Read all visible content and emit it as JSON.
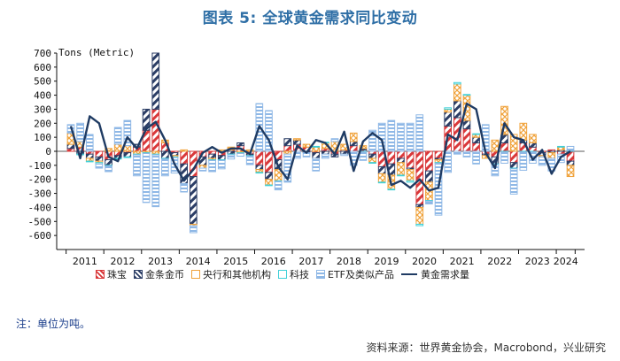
{
  "title": "图表  5: 全球黄金需求同比变动",
  "note": "注：单位为吨。",
  "source": "资料来源：世界黄金协会，Macrobond，兴业研究",
  "chart_data": {
    "type": "bar",
    "unit_label": "Tons (Metric)",
    "ylim": [
      -700,
      700
    ],
    "yticks": [
      -600,
      -500,
      -400,
      -300,
      -200,
      -100,
      0,
      100,
      200,
      300,
      400,
      500,
      600,
      700
    ],
    "years": [
      "2011",
      "2012",
      "2013",
      "2014",
      "2015",
      "2016",
      "2017",
      "2018",
      "2019",
      "2020",
      "2021",
      "2022",
      "2023",
      "2024"
    ],
    "quarters": [
      "2011Q1",
      "2011Q2",
      "2011Q3",
      "2011Q4",
      "2012Q1",
      "2012Q2",
      "2012Q3",
      "2012Q4",
      "2013Q1",
      "2013Q2",
      "2013Q3",
      "2013Q4",
      "2014Q1",
      "2014Q2",
      "2014Q3",
      "2014Q4",
      "2015Q1",
      "2015Q2",
      "2015Q3",
      "2015Q4",
      "2016Q1",
      "2016Q2",
      "2016Q3",
      "2016Q4",
      "2017Q1",
      "2017Q2",
      "2017Q3",
      "2017Q4",
      "2018Q1",
      "2018Q2",
      "2018Q3",
      "2018Q4",
      "2019Q1",
      "2019Q2",
      "2019Q3",
      "2019Q4",
      "2020Q1",
      "2020Q2",
      "2020Q3",
      "2020Q4",
      "2021Q1",
      "2021Q2",
      "2021Q3",
      "2021Q4",
      "2022Q1",
      "2022Q2",
      "2022Q3",
      "2022Q4",
      "2023Q1",
      "2023Q2",
      "2023Q3",
      "2023Q4",
      "2024Q1",
      "2024Q2"
    ],
    "grid": false,
    "legend_position": "bottom",
    "series": [
      {
        "name": "珠宝",
        "kind": "bar",
        "color": "#d9383a",
        "pattern": "diag",
        "values": [
          20,
          30,
          -20,
          -40,
          -60,
          -30,
          -10,
          30,
          150,
          300,
          60,
          -10,
          -90,
          -180,
          -40,
          -20,
          -30,
          10,
          40,
          -20,
          -100,
          -150,
          -60,
          40,
          50,
          30,
          -10,
          20,
          -20,
          10,
          40,
          10,
          -20,
          -110,
          -90,
          -50,
          -120,
          -380,
          -140,
          -50,
          180,
          240,
          160,
          60,
          -20,
          -40,
          60,
          -80,
          60,
          30,
          -10,
          10,
          -20,
          -70
        ]
      },
      {
        "name": "金条金币",
        "kind": "bar",
        "color": "#2c3e66",
        "pattern": "diag",
        "values": [
          30,
          -20,
          -30,
          -30,
          -40,
          -20,
          -30,
          20,
          150,
          400,
          -50,
          -20,
          -140,
          -340,
          -60,
          -30,
          -30,
          -20,
          20,
          -10,
          -30,
          -50,
          -70,
          50,
          30,
          -10,
          -40,
          -20,
          -20,
          -20,
          30,
          10,
          -30,
          -50,
          -80,
          -30,
          -10,
          -20,
          -80,
          -10,
          100,
          120,
          60,
          40,
          -10,
          -50,
          60,
          -40,
          20,
          30,
          -20,
          -10,
          10,
          -30
        ]
      },
      {
        "name": "央行和其他机构",
        "kind": "bar",
        "color": "#f0a23a",
        "pattern": "cross",
        "values": [
          80,
          40,
          -20,
          -10,
          20,
          50,
          40,
          -20,
          -10,
          -20,
          20,
          -10,
          10,
          -10,
          -20,
          -10,
          10,
          20,
          -10,
          10,
          -20,
          -40,
          -80,
          -20,
          10,
          20,
          30,
          40,
          70,
          40,
          60,
          20,
          -30,
          -60,
          -100,
          -90,
          -80,
          -120,
          -130,
          -20,
          20,
          120,
          180,
          20,
          -20,
          80,
          200,
          120,
          120,
          60,
          -10,
          -40,
          20,
          -80
        ]
      },
      {
        "name": "科技",
        "kind": "bar",
        "color": "#3fd0d8",
        "pattern": "none",
        "values": [
          0,
          -5,
          -5,
          -10,
          -5,
          -5,
          -5,
          -5,
          -5,
          -5,
          -5,
          -5,
          0,
          0,
          0,
          -5,
          -5,
          -5,
          -5,
          -5,
          -5,
          -5,
          -5,
          0,
          0,
          0,
          5,
          5,
          0,
          0,
          0,
          -5,
          -5,
          -5,
          -5,
          -5,
          -10,
          -10,
          -5,
          -5,
          10,
          10,
          5,
          5,
          0,
          -5,
          -5,
          -5,
          -5,
          -5,
          0,
          0,
          5,
          5
        ]
      },
      {
        "name": "ETF及类似产品",
        "kind": "bar",
        "color": "#8fb8e6",
        "pattern": "hstripe",
        "values": [
          60,
          130,
          120,
          -30,
          -40,
          120,
          180,
          -150,
          -350,
          -370,
          -120,
          -110,
          -60,
          -50,
          -20,
          -80,
          -60,
          -30,
          -20,
          -60,
          340,
          290,
          -60,
          -200,
          -50,
          -30,
          -90,
          -30,
          20,
          -10,
          -100,
          -60,
          150,
          200,
          220,
          200,
          200,
          260,
          -20,
          -370,
          -150,
          -20,
          -40,
          -90,
          190,
          -80,
          -80,
          -180,
          -130,
          -80,
          -60,
          -90,
          -60,
          30
        ]
      },
      {
        "name": "黄金需求量",
        "kind": "line",
        "color": "#1f3b63",
        "values": [
          180,
          -50,
          250,
          200,
          -40,
          -70,
          100,
          20,
          160,
          210,
          80,
          -90,
          -210,
          -130,
          -10,
          30,
          -10,
          20,
          20,
          -20,
          180,
          80,
          -110,
          -200,
          40,
          -10,
          80,
          60,
          -20,
          140,
          -140,
          70,
          130,
          80,
          -240,
          -210,
          -260,
          -200,
          -280,
          -260,
          120,
          80,
          340,
          300,
          -10,
          -120,
          200,
          100,
          80,
          -60,
          10,
          -160,
          -40,
          0
        ]
      }
    ]
  }
}
